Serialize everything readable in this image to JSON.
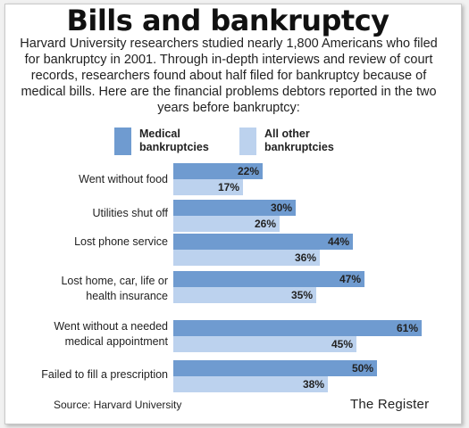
{
  "title": "Bills and bankruptcy",
  "intro": "Harvard University researchers studied nearly 1,800 Americans who filed for bankruptcy in 2001. Through in-depth interviews and review of court records, researchers found about half filed for bankruptcy because of medical bills. Here are the financial problems debtors reported in the two years before bankruptcy:",
  "legend": {
    "medical": "Medical bankruptcies",
    "other": "All other bankruptcies"
  },
  "colors": {
    "medical": "#6f9bd0",
    "other": "#bcd2ee"
  },
  "chart_data": {
    "type": "bar",
    "orientation": "horizontal",
    "categories": [
      "Went without food",
      "Utilities shut off",
      "Lost phone service",
      "Lost home, car, life or health insurance",
      "Went without a needed medical appointment",
      "Failed to fill a prescription"
    ],
    "series": [
      {
        "name": "Medical bankruptcies",
        "values": [
          22,
          30,
          44,
          47,
          61,
          50
        ]
      },
      {
        "name": "All other bankruptcies",
        "values": [
          17,
          26,
          36,
          35,
          45,
          38
        ]
      }
    ],
    "value_suffix": "%",
    "xlim": [
      0,
      100
    ],
    "legend_position": "top"
  },
  "source": "Source: Harvard University",
  "credit": "The Register"
}
